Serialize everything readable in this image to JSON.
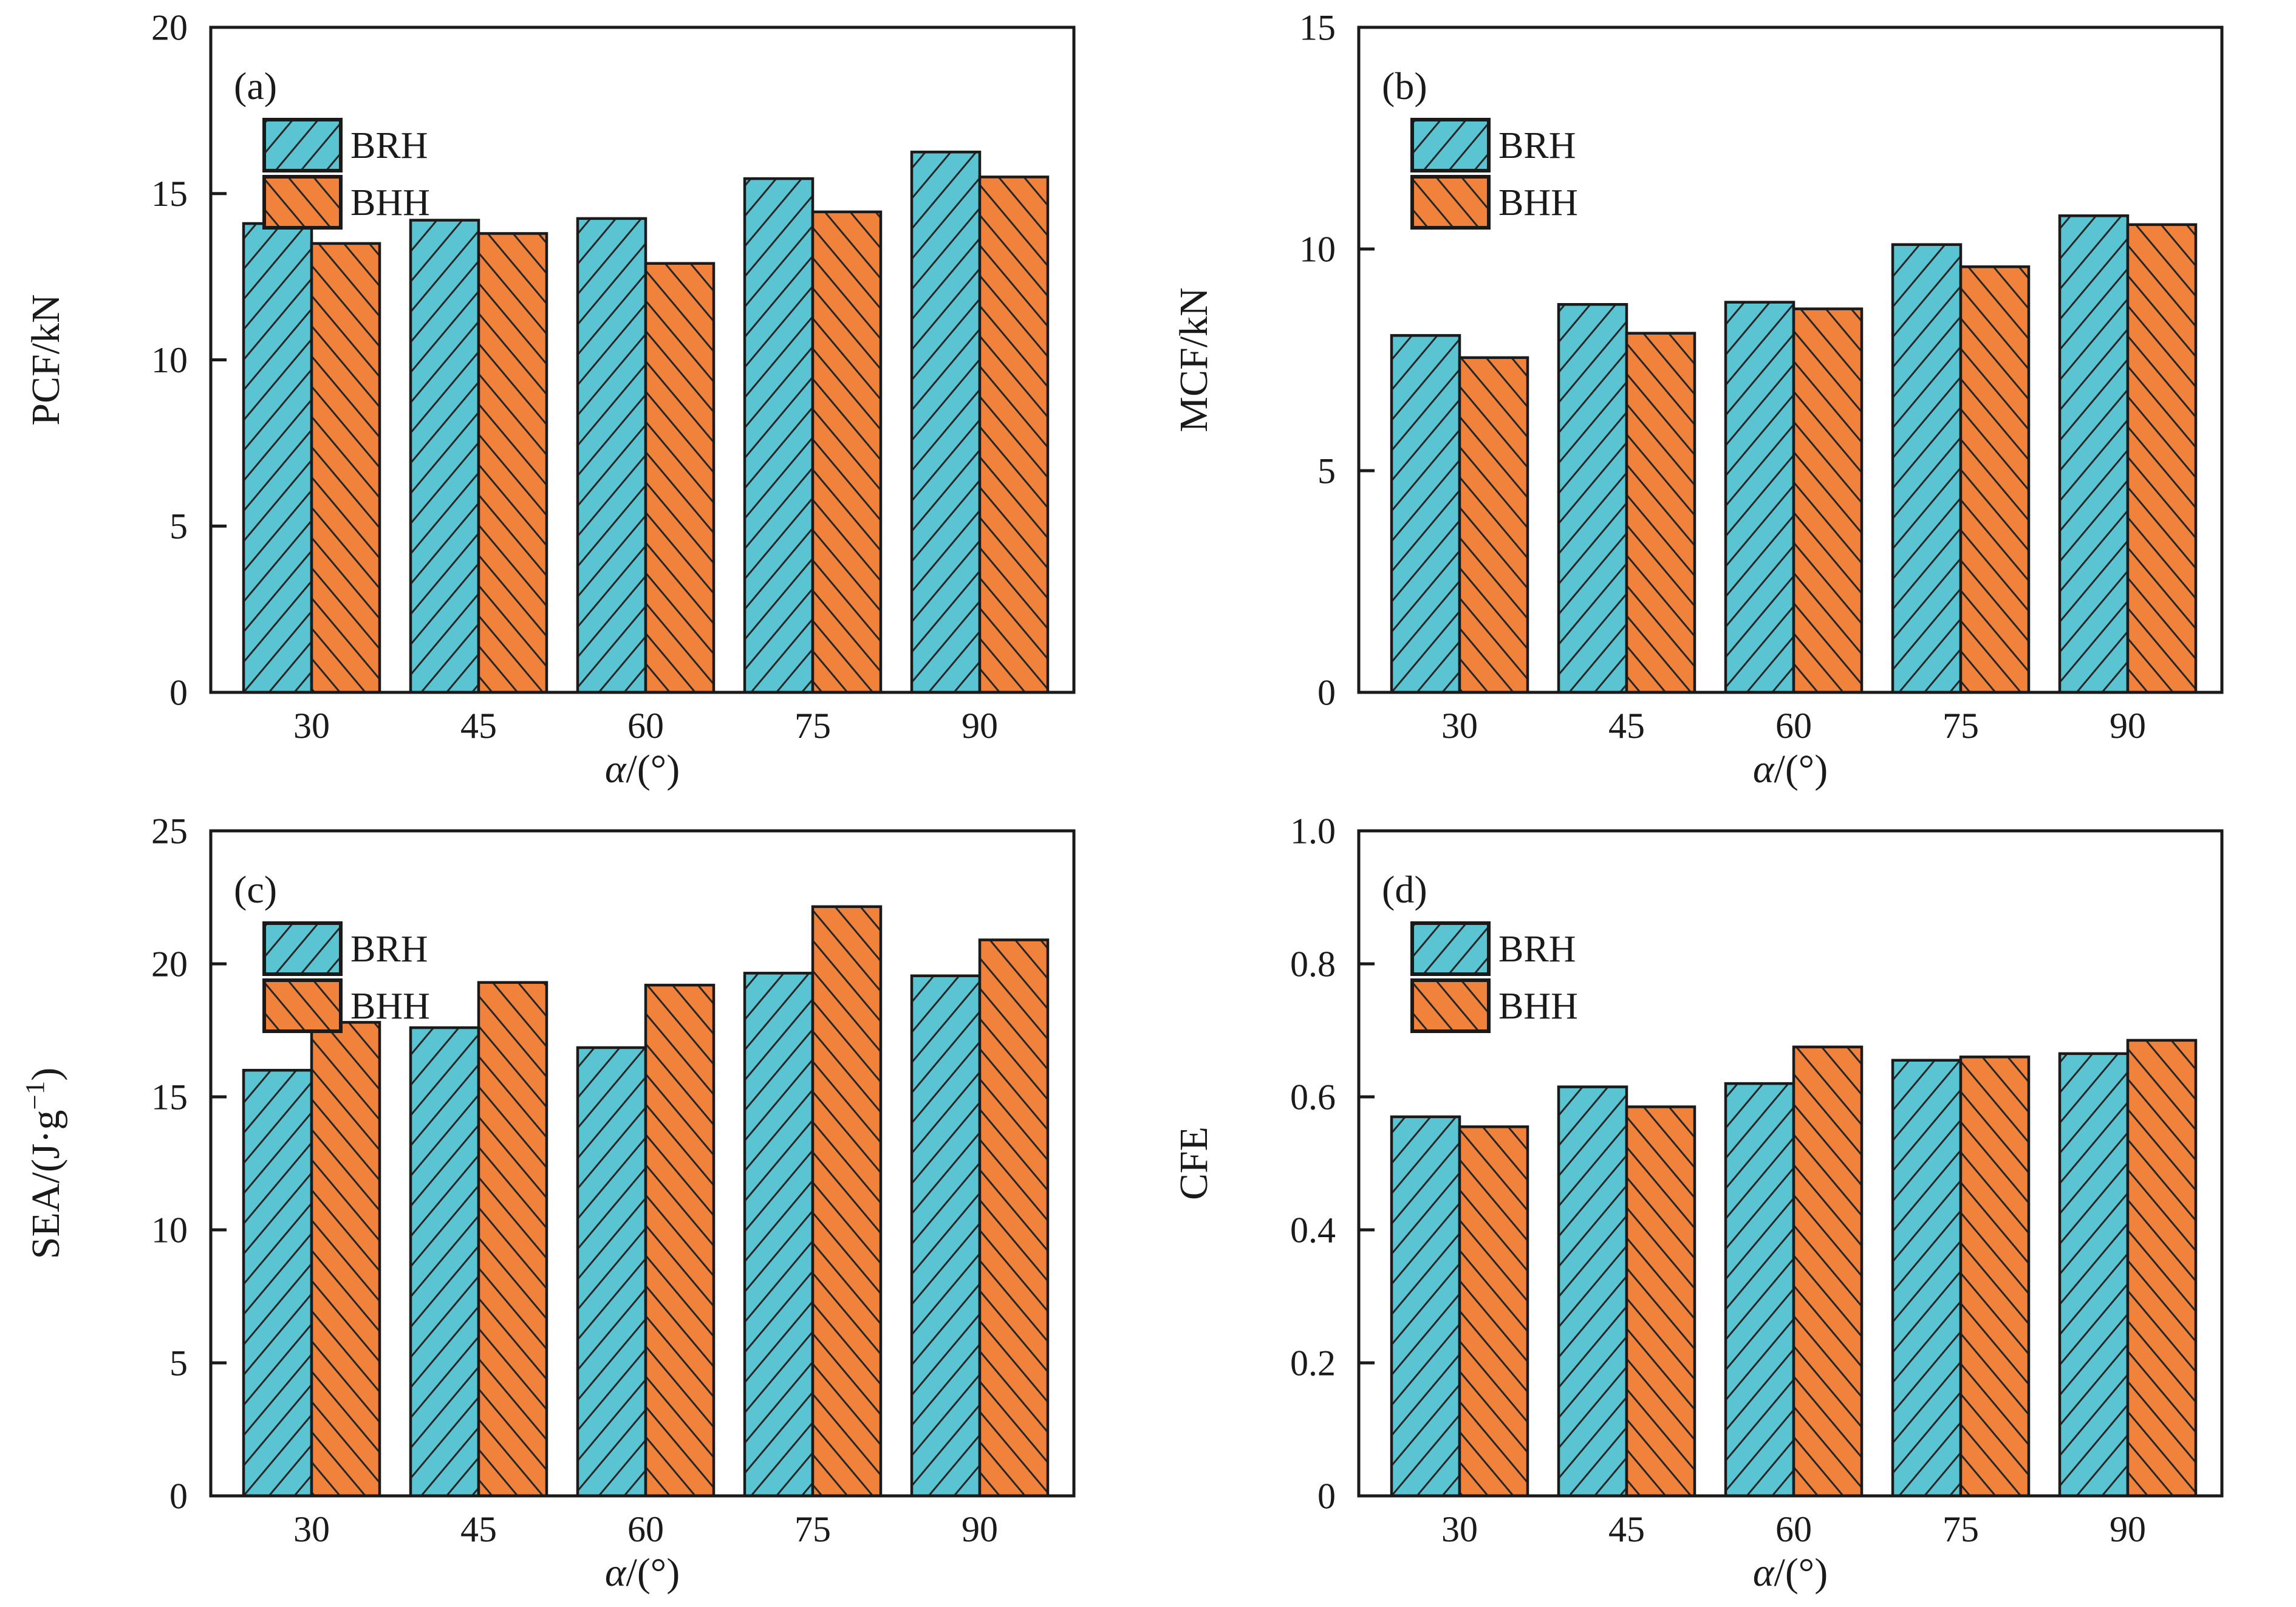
{
  "figure": {
    "background": "#ffffff",
    "panel_order": [
      "a",
      "b",
      "c",
      "d"
    ]
  },
  "colors": {
    "brh_fill": "#5BC4D3",
    "bhh_fill": "#F0823C",
    "hatch_line": "#262626",
    "axis": "#1a1a1a",
    "text": "#1a1a1a"
  },
  "legend": {
    "items": [
      {
        "label": "BRH"
      },
      {
        "label": "BHH"
      }
    ]
  },
  "chart_data": [
    {
      "panel": "(a)",
      "type": "bar",
      "xlabel": "α/(°)",
      "ylabel": "PCF/kN",
      "categories": [
        "30",
        "45",
        "60",
        "75",
        "90"
      ],
      "series": [
        {
          "name": "BRH",
          "color_key": "brh_fill",
          "hatch": "/",
          "values": [
            14.1,
            14.2,
            14.25,
            15.45,
            16.25
          ]
        },
        {
          "name": "BHH",
          "color_key": "bhh_fill",
          "hatch": "\\",
          "values": [
            13.5,
            13.8,
            12.9,
            14.45,
            15.5
          ]
        }
      ],
      "ylim": [
        0,
        20
      ],
      "yticks": [
        0,
        5,
        10,
        15,
        20
      ],
      "ytick_labels": [
        "0",
        "5",
        "10",
        "15",
        "20"
      ],
      "legend_position": "upper-left",
      "grid": false
    },
    {
      "panel": "(b)",
      "type": "bar",
      "xlabel": "α/(°)",
      "ylabel": "MCF/kN",
      "categories": [
        "30",
        "45",
        "60",
        "75",
        "90"
      ],
      "series": [
        {
          "name": "BRH",
          "color_key": "brh_fill",
          "hatch": "/",
          "values": [
            8.05,
            8.75,
            8.8,
            10.1,
            10.75
          ]
        },
        {
          "name": "BHH",
          "color_key": "bhh_fill",
          "hatch": "\\",
          "values": [
            7.55,
            8.1,
            8.65,
            9.6,
            10.55
          ]
        }
      ],
      "ylim": [
        0,
        15
      ],
      "yticks": [
        0,
        5,
        10,
        15
      ],
      "ytick_labels": [
        "0",
        "5",
        "10",
        "15"
      ],
      "legend_position": "upper-left",
      "grid": false
    },
    {
      "panel": "(c)",
      "type": "bar",
      "xlabel": "α/(°)",
      "ylabel": "SEA/(J·g⁻¹)",
      "categories": [
        "30",
        "45",
        "60",
        "75",
        "90"
      ],
      "series": [
        {
          "name": "BRH",
          "color_key": "brh_fill",
          "hatch": "/",
          "values": [
            16.0,
            17.6,
            16.85,
            19.65,
            19.55
          ]
        },
        {
          "name": "BHH",
          "color_key": "bhh_fill",
          "hatch": "\\",
          "values": [
            17.8,
            19.3,
            19.2,
            22.15,
            20.9
          ]
        }
      ],
      "ylim": [
        0,
        25
      ],
      "yticks": [
        0,
        5,
        10,
        15,
        20,
        25
      ],
      "ytick_labels": [
        "0",
        "5",
        "10",
        "15",
        "20",
        "25"
      ],
      "legend_position": "upper-left",
      "grid": false
    },
    {
      "panel": "(d)",
      "type": "bar",
      "xlabel": "α/(°)",
      "ylabel": "CFE",
      "categories": [
        "30",
        "45",
        "60",
        "75",
        "90"
      ],
      "series": [
        {
          "name": "BRH",
          "color_key": "brh_fill",
          "hatch": "/",
          "values": [
            0.57,
            0.615,
            0.62,
            0.655,
            0.665
          ]
        },
        {
          "name": "BHH",
          "color_key": "bhh_fill",
          "hatch": "\\",
          "values": [
            0.555,
            0.585,
            0.675,
            0.66,
            0.685
          ]
        }
      ],
      "ylim": [
        0,
        1.0
      ],
      "yticks": [
        0,
        0.2,
        0.4,
        0.6,
        0.8,
        1.0
      ],
      "ytick_labels": [
        "0",
        "0.2",
        "0.4",
        "0.6",
        "0.8",
        "1.0"
      ],
      "legend_position": "upper-left",
      "grid": false
    }
  ]
}
